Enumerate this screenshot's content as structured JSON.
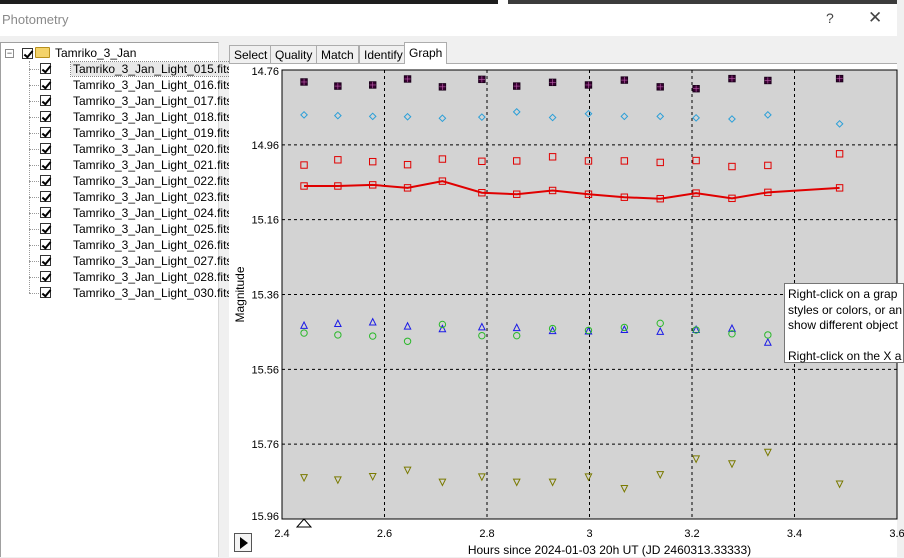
{
  "window": {
    "title": "Photometry",
    "help_glyph": "?",
    "close_glyph": "✕"
  },
  "tree": {
    "root_label": "Tamriko_3_Jan",
    "root_expander": "−",
    "files": [
      "Tamriko_3_Jan_Light_015.fits",
      "Tamriko_3_Jan_Light_016.fits",
      "Tamriko_3_Jan_Light_017.fits",
      "Tamriko_3_Jan_Light_018.fits",
      "Tamriko_3_Jan_Light_019.fits",
      "Tamriko_3_Jan_Light_020.fits",
      "Tamriko_3_Jan_Light_021.fits",
      "Tamriko_3_Jan_Light_022.fits",
      "Tamriko_3_Jan_Light_023.fits",
      "Tamriko_3_Jan_Light_024.fits",
      "Tamriko_3_Jan_Light_025.fits",
      "Tamriko_3_Jan_Light_026.fits",
      "Tamriko_3_Jan_Light_027.fits",
      "Tamriko_3_Jan_Light_028.fits",
      "Tamriko_3_Jan_Light_030.fits"
    ],
    "selected_index": 0
  },
  "tabs": [
    "Select",
    "Quality",
    "Match",
    "Identify",
    "Graph"
  ],
  "active_tab": "Graph",
  "tooltip": {
    "line1": "Right-click on a grap",
    "line2": "styles or colors, or an",
    "line3": "show different object",
    "line4": "Right-click on the X a"
  },
  "chart_data": {
    "type": "scatter",
    "xlabel": "Hours since 2024-01-03 20h UT (JD 2460313.33333)",
    "ylabel": "Magnitude",
    "xlim": [
      2.4,
      3.6
    ],
    "ylim": [
      15.96,
      14.76
    ],
    "y_inverted": true,
    "grid": true,
    "x_ticks": [
      "2.4",
      "2.6",
      "2.8",
      "3",
      "3.2",
      "3.4",
      "3.6"
    ],
    "y_ticks": [
      "14.76",
      "14.96",
      "15.16",
      "15.36",
      "15.56",
      "15.76",
      "15.96"
    ],
    "x": [
      2.443,
      2.509,
      2.577,
      2.645,
      2.713,
      2.79,
      2.858,
      2.928,
      2.998,
      3.068,
      3.138,
      3.208,
      3.278,
      3.348,
      3.488
    ],
    "series": [
      {
        "marker": "filled-square",
        "color": "#3a0033",
        "values": [
          14.792,
          14.803,
          14.8,
          14.784,
          14.805,
          14.785,
          14.803,
          14.793,
          14.8,
          14.787,
          14.805,
          14.81,
          14.783,
          14.788,
          14.783
        ]
      },
      {
        "marker": "diamond",
        "color": "#2a9fd8",
        "values": [
          14.88,
          14.882,
          14.884,
          14.885,
          14.889,
          14.886,
          14.872,
          14.887,
          14.877,
          14.884,
          14.884,
          14.888,
          14.891,
          14.88,
          14.904
        ]
      },
      {
        "marker": "square",
        "color": "#e00000",
        "values": [
          15.014,
          15.0,
          15.005,
          15.013,
          14.998,
          15.004,
          15.003,
          14.992,
          15.003,
          15.003,
          15.007,
          15.002,
          15.018,
          15.015,
          14.984
        ]
      },
      {
        "marker": "square-line",
        "color": "#e00000",
        "values": [
          15.07,
          15.07,
          15.067,
          15.075,
          15.057,
          15.088,
          15.092,
          15.082,
          15.092,
          15.1,
          15.104,
          15.089,
          15.103,
          15.087,
          15.075
        ]
      },
      {
        "marker": "triangle",
        "color": "#1c1ce6",
        "values": [
          15.442,
          15.437,
          15.433,
          15.444,
          15.451,
          15.446,
          15.448,
          15.456,
          15.457,
          15.453,
          15.458,
          15.453,
          15.45,
          15.487,
          null
        ]
      },
      {
        "marker": "circle",
        "color": "#2ab82a",
        "values": [
          15.463,
          15.468,
          15.471,
          15.485,
          15.44,
          15.47,
          15.47,
          15.451,
          15.456,
          15.448,
          15.437,
          15.455,
          15.465,
          15.468,
          null
        ]
      },
      {
        "marker": "triangle-down",
        "color": "#7a7a00",
        "values": [
          15.85,
          15.856,
          15.847,
          15.83,
          15.862,
          15.848,
          15.862,
          15.862,
          15.848,
          15.879,
          15.842,
          15.8,
          15.813,
          15.782,
          15.867
        ]
      }
    ]
  }
}
